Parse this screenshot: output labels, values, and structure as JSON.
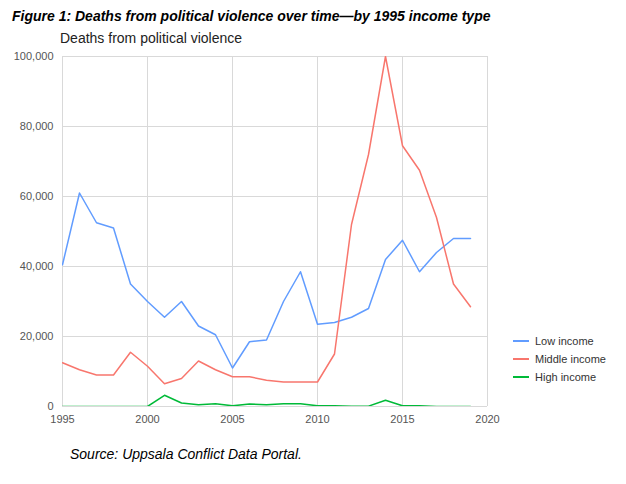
{
  "chart_data": {
    "type": "line",
    "title": "Figure 1: Deaths from political violence over time—by 1995 income type",
    "y_label": "Deaths from political violence",
    "source": "Source: Uppsala Conflict Data Portal.",
    "x": [
      1995,
      1996,
      1997,
      1998,
      1999,
      2000,
      2001,
      2002,
      2003,
      2004,
      2005,
      2006,
      2007,
      2008,
      2009,
      2010,
      2011,
      2012,
      2013,
      2014,
      2015,
      2016,
      2017,
      2018,
      2019
    ],
    "series": [
      {
        "name": "Low income",
        "color": "#619CFF",
        "values": [
          40500,
          61000,
          52500,
          51000,
          35000,
          30000,
          25500,
          30000,
          23000,
          20500,
          11000,
          18500,
          19000,
          30000,
          38500,
          23500,
          24000,
          25500,
          28000,
          42000,
          47500,
          38500,
          44000,
          48000,
          48000
        ]
      },
      {
        "name": "Middle income",
        "color": "#F8766D",
        "values": [
          12500,
          10500,
          9000,
          9000,
          15500,
          11500,
          6500,
          8000,
          13000,
          10500,
          8500,
          8500,
          7500,
          7000,
          7000,
          7000,
          15000,
          52000,
          72000,
          100000,
          74500,
          67500,
          54000,
          35000,
          28500
        ]
      },
      {
        "name": "High income",
        "color": "#00BA38",
        "values": [
          0,
          0,
          0,
          0,
          0,
          0,
          3200,
          1000,
          500,
          800,
          200,
          700,
          500,
          800,
          800,
          200,
          200,
          100,
          100,
          1800,
          200,
          200,
          0,
          0,
          0
        ]
      }
    ],
    "xlim": [
      1995,
      2020
    ],
    "xticks": [
      1995,
      2000,
      2005,
      2010,
      2015,
      2020
    ],
    "ylim": [
      0,
      100000
    ],
    "yticks": [
      0,
      {
        "value": 20000,
        "label": "20,000"
      },
      {
        "value": 40000,
        "label": "40,000"
      },
      {
        "value": 60000,
        "label": "60,000"
      },
      {
        "value": 80000,
        "label": "80,000"
      },
      {
        "value": 100000,
        "label": "100,000"
      }
    ],
    "grid": true,
    "legend": "right"
  }
}
